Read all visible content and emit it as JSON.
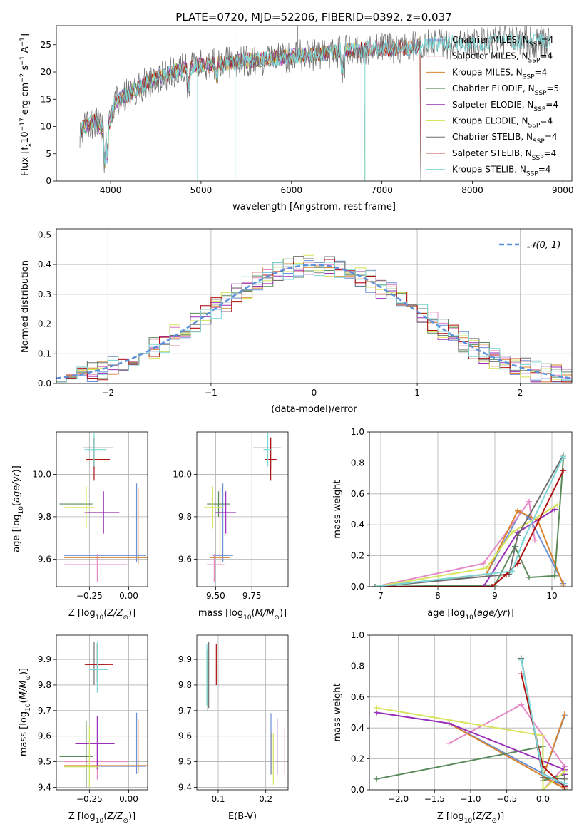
{
  "title": "PLATE=0720, MJD=52206, FIBERID=0392, z=0.037",
  "colors": {
    "Chabrier MILES": "#6a8fd6",
    "Salpeter MILES": "#e58ac6",
    "Kroupa MILES": "#d9832d",
    "Chabrier ELODIE": "#5a8a5a",
    "Salpeter ELODIE": "#9a2fb8",
    "Kroupa ELODIE": "#d8e45c",
    "Chabrier STELIB": "#6e6e6e",
    "Salpeter STELIB": "#b01010",
    "Kroupa STELIB": "#7ed7d7"
  },
  "chart_data": [
    {
      "id": "spectrum",
      "type": "line",
      "xlabel": "wavelength [Angstrom, rest frame]",
      "ylabel": "Flux [fλ10⁻¹⁷ erg cm⁻² s⁻¹ A⁻¹]",
      "xlim": [
        3400,
        9100
      ],
      "ylim": [
        0,
        28.5
      ],
      "xticks": [
        4000,
        5000,
        6000,
        7000,
        8000,
        9000
      ],
      "yticks": [
        0,
        5,
        10,
        15,
        20,
        25
      ],
      "grid": false,
      "legend": "top-right",
      "legend_entries": [
        {
          "name": "Chabrier MILES, N_SSP=4",
          "color": "#6a8fd6"
        },
        {
          "name": "Salpeter MILES, N_SSP=4",
          "color": "#e58ac6"
        },
        {
          "name": "Kroupa MILES, N_SSP=4",
          "color": "#d9832d"
        },
        {
          "name": "Chabrier ELODIE, N_SSP=5",
          "color": "#5a8a5a"
        },
        {
          "name": "Salpeter ELODIE, N_SSP=4",
          "color": "#9a2fb8"
        },
        {
          "name": "Kroupa ELODIE, N_SSP=4",
          "color": "#d8e45c"
        },
        {
          "name": "Chabrier STELIB, N_SSP=4",
          "color": "#6e6e6e"
        },
        {
          "name": "Salpeter STELIB, N_SSP=4",
          "color": "#b01010"
        },
        {
          "name": "Kroupa STELIB, N_SSP=4",
          "color": "#7ed7d7"
        }
      ],
      "continuum": {
        "x": [
          3650,
          3750,
          3850,
          3950,
          4050,
          4200,
          4400,
          4600,
          4800,
          5000,
          5200,
          5500,
          5800,
          6100,
          6400,
          6700,
          7000,
          7300,
          7600,
          8000,
          8400,
          8800
        ],
        "y": [
          9,
          10.5,
          11,
          8,
          14.5,
          16,
          18,
          19.5,
          20.5,
          21.2,
          21.5,
          22,
          22.5,
          23,
          23.5,
          24,
          24.2,
          24.5,
          25.2,
          25.3,
          25.5,
          25.6
        ]
      },
      "series_end": {
        "Salpeter STELIB": 7420,
        "MILES": 7420,
        "ELODIE": 6800,
        "STELIB": 8850
      },
      "spikes_down": [
        4961,
        5376,
        6812,
        7430
      ],
      "spikes_up": [
        5376,
        6070
      ]
    },
    {
      "id": "residuals",
      "type": "step",
      "xlabel": "(data-model)/error",
      "ylabel": "Normed distribution",
      "xlim": [
        -2.5,
        2.5
      ],
      "ylim": [
        0,
        0.52
      ],
      "xticks": [
        -2,
        -1,
        0,
        1,
        2
      ],
      "yticks": [
        0,
        0.1,
        0.2,
        0.3,
        0.4,
        0.5
      ],
      "grid": true,
      "legend": "top-right",
      "reference_label": "𝒩(0, 1)",
      "bins": 50
    },
    {
      "id": "age-vs-Z",
      "type": "errorbar",
      "xlabel": "Z [log₁₀(Z/Z⊙)]",
      "ylabel": "age  [log₁₀(age/yr)]",
      "xlim": [
        -0.46,
        0.12
      ],
      "ylim": [
        9.47,
        10.2
      ],
      "xticks": [
        -0.25,
        0.0
      ],
      "xticklabels": [
        "−0.25",
        "0.00"
      ],
      "yticks": [
        9.6,
        9.8,
        10.0
      ],
      "grid": true,
      "points": [
        {
          "series": "Chabrier MILES",
          "x": 0.05,
          "xerr": [
            0.46,
            0.06
          ],
          "y": 9.617,
          "yerr": [
            0.03,
            0.34
          ]
        },
        {
          "series": "Salpeter MILES",
          "x": -0.2,
          "xerr": [
            0.21,
            0.19
          ],
          "y": 9.574,
          "yerr": [
            0.08,
            0.05
          ]
        },
        {
          "series": "Kroupa MILES",
          "x": 0.06,
          "xerr": [
            0.47,
            0.06
          ],
          "y": 9.607,
          "yerr": [
            0.03,
            0.33
          ]
        },
        {
          "series": "Chabrier ELODIE",
          "x": -0.27,
          "xerr": [
            0.17,
            0.04
          ],
          "y": 9.86,
          "yerr": [
            0.06,
            0.06
          ]
        },
        {
          "series": "Salpeter ELODIE",
          "x": -0.16,
          "xerr": [
            0.12,
            0.1
          ],
          "y": 9.82,
          "yerr": [
            0.1,
            0.1
          ]
        },
        {
          "series": "Kroupa ELODIE",
          "x": -0.27,
          "xerr": [
            0.14,
            0.05
          ],
          "y": 9.844,
          "yerr": [
            0.1,
            0.1
          ]
        },
        {
          "series": "Chabrier STELIB",
          "x": -0.22,
          "xerr": [
            0.07,
            0.12
          ],
          "y": 10.125,
          "yerr": [
            0.1,
            0.05
          ]
        },
        {
          "series": "Salpeter STELIB",
          "x": -0.22,
          "xerr": [
            0.05,
            0.1
          ],
          "y": 10.07,
          "yerr": [
            0.1,
            0.1
          ]
        },
        {
          "series": "Kroupa STELIB",
          "x": -0.22,
          "xerr": [
            0.06,
            0.08
          ],
          "y": 10.117,
          "yerr": [
            0.08,
            0.08
          ]
        }
      ]
    },
    {
      "id": "age-vs-mass",
      "type": "errorbar",
      "xlabel": "mass [log₁₀(M/M⊙)]",
      "ylabel": "",
      "xlim": [
        9.37,
        10.0
      ],
      "ylim": [
        9.47,
        10.2
      ],
      "xticks": [
        9.5,
        9.75
      ],
      "xticklabels": [
        "9.50",
        "9.75"
      ],
      "yticks": [
        9.6,
        9.8,
        10.0
      ],
      "grid": true,
      "points": [
        {
          "series": "Chabrier MILES",
          "x": 9.55,
          "xerr": [
            0.07,
            0.07
          ],
          "y": 9.617,
          "yerr": [
            0.03,
            0.34
          ]
        },
        {
          "series": "Salpeter MILES",
          "x": 9.49,
          "xerr": [
            0.05,
            0.07
          ],
          "y": 9.574,
          "yerr": [
            0.08,
            0.05
          ]
        },
        {
          "series": "Kroupa MILES",
          "x": 9.53,
          "xerr": [
            0.07,
            0.07
          ],
          "y": 9.607,
          "yerr": [
            0.03,
            0.33
          ]
        },
        {
          "series": "Chabrier ELODIE",
          "x": 9.52,
          "xerr": [
            0.08,
            0.08
          ],
          "y": 9.86,
          "yerr": [
            0.06,
            0.06
          ]
        },
        {
          "series": "Salpeter ELODIE",
          "x": 9.57,
          "xerr": [
            0.07,
            0.07
          ],
          "y": 9.82,
          "yerr": [
            0.1,
            0.1
          ]
        },
        {
          "series": "Kroupa ELODIE",
          "x": 9.48,
          "xerr": [
            0.06,
            0.07
          ],
          "y": 9.844,
          "yerr": [
            0.1,
            0.1
          ]
        },
        {
          "series": "Chabrier STELIB",
          "x": 9.88,
          "xerr": [
            0.12,
            0.07
          ],
          "y": 10.125,
          "yerr": [
            0.1,
            0.05
          ]
        },
        {
          "series": "Salpeter STELIB",
          "x": 9.88,
          "xerr": [
            0.04,
            0.04
          ],
          "y": 10.07,
          "yerr": [
            0.1,
            0.1
          ]
        },
        {
          "series": "Kroupa STELIB",
          "x": 9.86,
          "xerr": [
            0.03,
            0.03
          ],
          "y": 10.117,
          "yerr": [
            0.08,
            0.08
          ]
        }
      ]
    },
    {
      "id": "mass-weight-vs-age",
      "type": "line",
      "xlabel": "age  [log₁₀(age/yr)]",
      "ylabel": "mass weight",
      "xlim": [
        6.8,
        10.35
      ],
      "ylim": [
        0,
        1.0
      ],
      "xticks": [
        7,
        8,
        9,
        10
      ],
      "yticks": [
        0,
        0.2,
        0.4,
        0.6,
        0.8,
        1.0
      ],
      "grid": true,
      "series": [
        {
          "name": "Chabrier MILES",
          "x": [
            6.9,
            8.85,
            9.45,
            9.6,
            10.2
          ],
          "y": [
            0.0,
            0.08,
            0.48,
            0.45,
            0.02
          ]
        },
        {
          "name": "Salpeter MILES",
          "x": [
            6.9,
            8.8,
            9.6,
            9.7
          ],
          "y": [
            0.0,
            0.15,
            0.55,
            0.3
          ]
        },
        {
          "name": "Kroupa MILES",
          "x": [
            6.9,
            8.85,
            9.4,
            9.75,
            10.2
          ],
          "y": [
            0.0,
            0.08,
            0.49,
            0.43,
            0.01
          ]
        },
        {
          "name": "Chabrier ELODIE",
          "x": [
            6.9,
            9.0,
            9.35,
            9.6,
            10.05,
            10.2
          ],
          "y": [
            0.0,
            0.01,
            0.26,
            0.06,
            0.07,
            0.83
          ]
        },
        {
          "name": "Salpeter ELODIE",
          "x": [
            6.9,
            8.8,
            9.4,
            10.05
          ],
          "y": [
            0.0,
            0.0,
            0.35,
            0.5
          ]
        },
        {
          "name": "Kroupa ELODIE",
          "x": [
            6.9,
            8.85,
            9.3,
            10.1
          ],
          "y": [
            0.0,
            0.12,
            0.35,
            0.53
          ]
        },
        {
          "name": "Chabrier STELIB",
          "x": [
            6.9,
            9.25,
            9.4,
            10.2
          ],
          "y": [
            0.0,
            0.08,
            0.33,
            0.85
          ]
        },
        {
          "name": "Salpeter STELIB",
          "x": [
            6.9,
            8.95,
            9.2,
            9.4,
            10.2
          ],
          "y": [
            0.0,
            0.0,
            0.08,
            0.15,
            0.75
          ]
        },
        {
          "name": "Kroupa STELIB",
          "x": [
            6.9,
            9.3,
            9.5,
            10.2
          ],
          "y": [
            0.0,
            0.1,
            0.3,
            0.84
          ]
        }
      ]
    },
    {
      "id": "mass-vs-Z",
      "type": "errorbar",
      "xlabel": "Z [log₁₀(Z/Z⊙)]",
      "ylabel": "mass [log₁₀(M/M⊙)]",
      "xlim": [
        -0.46,
        0.12
      ],
      "ylim": [
        9.39,
        9.995
      ],
      "xticks": [
        -0.25,
        0.0
      ],
      "xticklabels": [
        "−0.25",
        "0.00"
      ],
      "yticks": [
        9.4,
        9.5,
        9.6,
        9.7,
        9.8,
        9.9
      ],
      "grid": true,
      "points": [
        {
          "series": "Chabrier MILES",
          "x": 0.05,
          "xerr": [
            0.46,
            0.06
          ],
          "y": 9.482,
          "yerr": [
            0.03,
            0.21
          ]
        },
        {
          "series": "Salpeter MILES",
          "x": -0.2,
          "xerr": [
            0.21,
            0.19
          ],
          "y": 9.5,
          "yerr": [
            0.07,
            0.07
          ]
        },
        {
          "series": "Kroupa MILES",
          "x": 0.06,
          "xerr": [
            0.47,
            0.06
          ],
          "y": 9.485,
          "yerr": [
            0.03,
            0.18
          ]
        },
        {
          "series": "Chabrier ELODIE",
          "x": -0.27,
          "xerr": [
            0.17,
            0.04
          ],
          "y": 9.52,
          "yerr": [
            0.12,
            0.14
          ]
        },
        {
          "series": "Salpeter ELODIE",
          "x": -0.2,
          "xerr": [
            0.14,
            0.11
          ],
          "y": 9.57,
          "yerr": [
            0.1,
            0.11
          ]
        },
        {
          "series": "Kroupa ELODIE",
          "x": -0.25,
          "xerr": [
            0.16,
            0.06
          ],
          "y": 9.48,
          "yerr": [
            0.08,
            0.16
          ]
        },
        {
          "series": "Chabrier STELIB",
          "x": -0.22,
          "xerr": [
            0.05,
            0.07
          ],
          "y": 9.88,
          "yerr": [
            0.08,
            0.09
          ]
        },
        {
          "series": "Salpeter STELIB",
          "x": -0.2,
          "xerr": [
            0.08,
            0.1
          ],
          "y": 9.88,
          "yerr": [
            0.07,
            0.08
          ]
        },
        {
          "series": "Kroupa STELIB",
          "x": -0.2,
          "xerr": [
            0.05,
            0.07
          ],
          "y": 9.86,
          "yerr": [
            0.09,
            0.11
          ]
        }
      ]
    },
    {
      "id": "mass-vs-EBV",
      "type": "errorbar",
      "xlabel": "E(B-V)",
      "ylabel": "",
      "xlim": [
        0.055,
        0.247
      ],
      "ylim": [
        9.39,
        9.995
      ],
      "xticks": [
        0.1,
        0.2
      ],
      "xticklabels": [
        "0.1",
        "0.2"
      ],
      "yticks": [
        9.4,
        9.5,
        9.6,
        9.7,
        9.8,
        9.9
      ],
      "grid": true,
      "points": [
        {
          "series": "Chabrier MILES",
          "x": 0.211,
          "xerr": [
            0,
            0
          ],
          "y": 9.57,
          "yerr": [
            0.12,
            0.12
          ]
        },
        {
          "series": "Salpeter MILES",
          "x": 0.24,
          "xerr": [
            0,
            0
          ],
          "y": 9.54,
          "yerr": [
            0.09,
            0.09
          ]
        },
        {
          "series": "Kroupa MILES",
          "x": 0.213,
          "xerr": [
            0,
            0
          ],
          "y": 9.53,
          "yerr": [
            0.08,
            0.08
          ]
        },
        {
          "series": "Chabrier ELODIE",
          "x": 0.078,
          "xerr": [
            0,
            0
          ],
          "y": 9.82,
          "yerr": [
            0.12,
            0.12
          ]
        },
        {
          "series": "Salpeter ELODIE",
          "x": 0.224,
          "xerr": [
            0,
            0
          ],
          "y": 9.56,
          "yerr": [
            0.11,
            0.11
          ]
        },
        {
          "series": "Kroupa ELODIE",
          "x": 0.216,
          "xerr": [
            0,
            0
          ],
          "y": 9.51,
          "yerr": [
            0.1,
            0.1
          ]
        },
        {
          "series": "Chabrier STELIB",
          "x": 0.08,
          "xerr": [
            0,
            0
          ],
          "y": 9.84,
          "yerr": [
            0.13,
            0.13
          ]
        },
        {
          "series": "Salpeter STELIB",
          "x": 0.096,
          "xerr": [
            0,
            0
          ],
          "y": 9.88,
          "yerr": [
            0.08,
            0.08
          ]
        },
        {
          "series": "Kroupa STELIB",
          "x": 0.076,
          "xerr": [
            0,
            0
          ],
          "y": 9.84,
          "yerr": [
            0.12,
            0.12
          ]
        }
      ]
    },
    {
      "id": "mass-weight-vs-Z",
      "type": "line",
      "xlabel": "Z [log₁₀(Z/Z⊙)]",
      "ylabel": "mass weight",
      "xlim": [
        -2.4,
        0.4
      ],
      "ylim": [
        0,
        1.0
      ],
      "xticks": [
        -2.0,
        -1.5,
        -1.0,
        -0.5,
        0.0
      ],
      "xticklabels": [
        "−2.0",
        "−1.5",
        "−1.0",
        "−0.5",
        "0.0"
      ],
      "yticks": [
        0,
        0.2,
        0.4,
        0.6,
        0.8,
        1.0
      ],
      "grid": true,
      "series": [
        {
          "name": "Chabrier MILES",
          "x": [
            -1.3,
            0.3,
            0.0,
            0.3
          ],
          "y": [
            0.43,
            0.03,
            0.08,
            0.48
          ]
        },
        {
          "name": "Salpeter MILES",
          "x": [
            -1.3,
            -0.3,
            0.3,
            0.0
          ],
          "y": [
            0.3,
            0.55,
            0.15,
            0.0
          ]
        },
        {
          "name": "Kroupa MILES",
          "x": [
            -1.3,
            0.3,
            0.0,
            0.3
          ],
          "y": [
            0.43,
            0.01,
            0.08,
            0.49
          ]
        },
        {
          "name": "Chabrier ELODIE",
          "x": [
            -2.3,
            0.0,
            0.0,
            0.3,
            0.3
          ],
          "y": [
            0.07,
            0.28,
            0.06,
            0.1,
            0.0
          ]
        },
        {
          "name": "Salpeter ELODIE",
          "x": [
            -2.3,
            -1.3,
            0.3,
            0.3
          ],
          "y": [
            0.5,
            0.43,
            0.13,
            0.1
          ]
        },
        {
          "name": "Kroupa ELODIE",
          "x": [
            -2.3,
            0.0,
            0.0,
            0.3
          ],
          "y": [
            0.53,
            0.35,
            0.0,
            0.12
          ]
        },
        {
          "name": "Chabrier STELIB",
          "x": [
            -0.3,
            0.0,
            0.3
          ],
          "y": [
            0.85,
            0.08,
            0.07
          ]
        },
        {
          "name": "Salpeter STELIB",
          "x": [
            -0.3,
            0.0,
            0.3
          ],
          "y": [
            0.75,
            0.15,
            0.02
          ]
        },
        {
          "name": "Kroupa STELIB",
          "x": [
            -0.3,
            0.0,
            0.3
          ],
          "y": [
            0.84,
            0.1,
            0.04
          ]
        }
      ]
    }
  ]
}
